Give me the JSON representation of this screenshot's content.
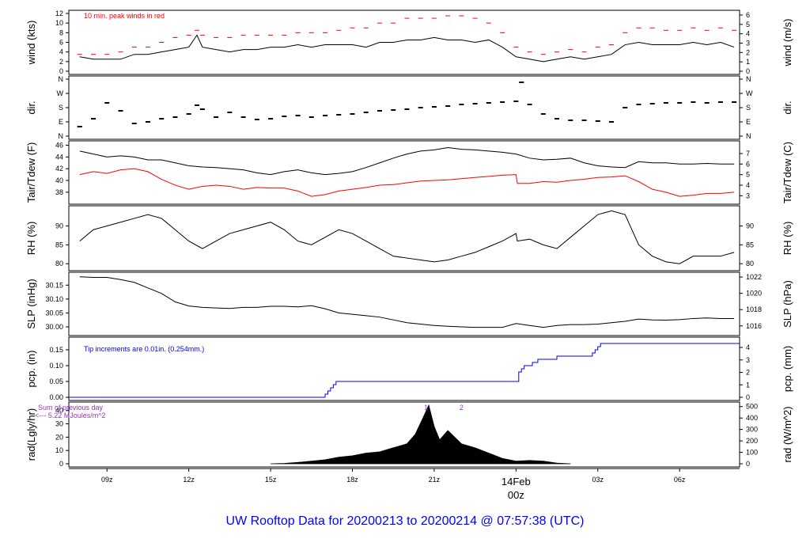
{
  "colors": {
    "primary": "#000000",
    "peak": "#ff0000",
    "dew": "#ff0000",
    "precip": "#0000ff",
    "solar": "#9933cc",
    "title": "#0000ff",
    "day": "#ff0000"
  },
  "footer_title": "UW Rooftop Data for 20200213  to  20200214 @ 07:57:38  (UTC)",
  "chart_data": [
    {
      "id": "wind",
      "type": "line",
      "ylabel_left": "wind (kts)",
      "ylabel_right": "wind (m/s)",
      "ylim": [
        0,
        12
      ],
      "yticks": [
        "0",
        "2",
        "4",
        "6",
        "8",
        "10",
        "12"
      ],
      "right_ylim": [
        0,
        6.17
      ],
      "right_yticks": [
        "0",
        "1",
        "2",
        "3",
        "4",
        "5",
        "6"
      ],
      "annotation": "10 min. peak winds in red",
      "series": [
        {
          "name": "wind speed",
          "color": "#000000",
          "x": [
            8,
            8.5,
            9,
            9.5,
            10,
            10.5,
            11,
            11.5,
            12,
            12.3,
            12.5,
            13,
            13.5,
            14,
            14.5,
            15,
            15.5,
            16,
            16.5,
            17,
            17.5,
            18,
            18.5,
            19,
            19.5,
            20,
            20.5,
            21,
            21.5,
            22,
            22.5,
            23,
            23.5,
            24,
            24.5,
            25,
            25.5,
            26,
            26.5,
            27,
            27.5,
            28,
            28.5,
            29,
            29.5,
            30,
            30.5,
            31,
            31.5,
            32
          ],
          "y": [
            3,
            2.5,
            2.5,
            2.5,
            3.5,
            3.5,
            4,
            4.5,
            5,
            7.5,
            5,
            4.5,
            4,
            4.5,
            4.5,
            5,
            5,
            5.5,
            5,
            5.5,
            5.5,
            5.5,
            5,
            6,
            6,
            6.5,
            6.5,
            7,
            6.5,
            6.5,
            6,
            6.5,
            5,
            3,
            2.5,
            2,
            2.5,
            3,
            2.5,
            3,
            3.5,
            5.5,
            6,
            5.5,
            5.5,
            5.5,
            6,
            5.5,
            6,
            5
          ]
        },
        {
          "name": "10 min peak",
          "color": "#ff0000",
          "x": [
            8,
            8.5,
            9,
            9.5,
            10,
            10.5,
            11,
            11.5,
            12,
            12.3,
            12.5,
            13,
            13.5,
            14,
            14.5,
            15,
            15.5,
            16,
            16.5,
            17,
            17.5,
            18,
            18.5,
            19,
            19.5,
            20,
            20.5,
            21,
            21.5,
            22,
            22.5,
            23,
            23.5,
            24,
            24.5,
            25,
            25.5,
            26,
            26.5,
            27,
            27.5,
            28,
            28.5,
            29,
            29.5,
            30,
            30.5,
            31,
            31.5,
            32
          ],
          "y": [
            3.5,
            3.5,
            3.5,
            4,
            5,
            5,
            6,
            7,
            7.5,
            8.5,
            7.5,
            7,
            7,
            7.5,
            7.5,
            7.5,
            7.5,
            8,
            8,
            8,
            8.5,
            9,
            9,
            10,
            10,
            11,
            11,
            11,
            11.5,
            11.5,
            11,
            10,
            8,
            5,
            4,
            3.5,
            4,
            4.5,
            4,
            5,
            5.5,
            8,
            9,
            9,
            8.5,
            8.5,
            9,
            8.5,
            9,
            8.5
          ]
        }
      ]
    },
    {
      "id": "dir",
      "type": "scatter",
      "ylabel_left": "dir.",
      "ylabel_right": "dir.",
      "ylim": [
        0,
        360
      ],
      "yticks": [
        "N",
        "E",
        "S",
        "W",
        "N"
      ],
      "right_yticks": [
        "N",
        "E",
        "S",
        "W",
        "N"
      ],
      "series": [
        {
          "name": "wind direction",
          "color": "#000000",
          "x": [
            8,
            8.5,
            9,
            9.5,
            10,
            10.5,
            11,
            11.5,
            12,
            12.3,
            12.5,
            13,
            13.5,
            14,
            14.5,
            15,
            15.5,
            16,
            16.5,
            17,
            17.5,
            18,
            18.5,
            19,
            19.5,
            20,
            20.5,
            21,
            21.5,
            22,
            22.5,
            23,
            23.5,
            24,
            24.2,
            24.5,
            25,
            25.5,
            26,
            26.5,
            27,
            27.5,
            28,
            28.5,
            29,
            29.5,
            30,
            30.5,
            31,
            31.5,
            32
          ],
          "y": [
            60,
            110,
            210,
            160,
            80,
            90,
            110,
            120,
            140,
            195,
            170,
            120,
            150,
            120,
            105,
            110,
            125,
            130,
            120,
            130,
            135,
            140,
            150,
            160,
            165,
            170,
            180,
            185,
            190,
            200,
            205,
            210,
            215,
            220,
            340,
            200,
            140,
            110,
            100,
            100,
            95,
            90,
            180,
            200,
            205,
            210,
            210,
            215,
            210,
            215,
            215
          ]
        }
      ]
    },
    {
      "id": "temp",
      "type": "line",
      "ylabel_left": "Tair/Tdew (F)",
      "ylabel_right": "Tair/Tdew (C)",
      "ylim": [
        36.5,
        46.2
      ],
      "yticks": [
        "38",
        "40",
        "42",
        "44",
        "46"
      ],
      "right_ylim": [
        2.5,
        7.9
      ],
      "right_yticks": [
        "3",
        "4",
        "5",
        "6",
        "7"
      ],
      "series": [
        {
          "name": "Tair",
          "color": "#000000",
          "x": [
            8,
            8.5,
            9,
            9.5,
            10,
            10.5,
            11,
            11.5,
            12,
            12.5,
            13,
            13.5,
            14,
            14.5,
            15,
            15.5,
            16,
            16.5,
            17,
            17.5,
            18,
            18.5,
            19,
            19.5,
            20,
            20.5,
            21,
            21.5,
            22,
            22.5,
            23,
            23.5,
            24,
            24.5,
            25,
            25.5,
            26,
            26.5,
            27,
            27.5,
            28,
            28.5,
            29,
            29.5,
            30,
            30.5,
            31,
            31.5,
            32
          ],
          "y": [
            45,
            44.5,
            44,
            44.2,
            44,
            43.5,
            43.5,
            43,
            42.5,
            42.3,
            42.2,
            42,
            41.8,
            41.3,
            41,
            41.5,
            41.8,
            41.3,
            41,
            41.2,
            41.5,
            42.2,
            43,
            43.8,
            44.5,
            45,
            45.2,
            45.6,
            45.3,
            45.2,
            45,
            44.8,
            44.5,
            43.8,
            43.5,
            43.6,
            43.8,
            43,
            42.5,
            42.3,
            42.2,
            43.2,
            43,
            43,
            42.8,
            42.8,
            42.9,
            42.8,
            42.8
          ]
        },
        {
          "name": "Tdew",
          "color": "#ff0000",
          "x": [
            8,
            8.5,
            9,
            9.5,
            10,
            10.5,
            11,
            11.5,
            12,
            12.5,
            13,
            13.5,
            14,
            14.5,
            15,
            15.5,
            16,
            16.5,
            17,
            17.5,
            18,
            18.5,
            19,
            19.5,
            20,
            20.5,
            21,
            21.5,
            22,
            22.5,
            23,
            23.5,
            24,
            24.05,
            24.5,
            25,
            25.5,
            26,
            26.5,
            27,
            27.5,
            28,
            28.5,
            29,
            29.5,
            30,
            30.5,
            31,
            31.5,
            32
          ],
          "y": [
            41,
            41.5,
            41.2,
            41.8,
            42,
            41.5,
            40.2,
            39.2,
            38.5,
            39,
            39.2,
            39,
            38.5,
            38.8,
            38.7,
            38.7,
            38.2,
            37.3,
            37.6,
            38.2,
            38.5,
            38.8,
            39.2,
            39.3,
            39.6,
            39.9,
            40,
            40.1,
            40.3,
            40.5,
            40.7,
            40.9,
            41,
            39.5,
            39.5,
            39.8,
            39.7,
            40,
            40.2,
            40.5,
            40.6,
            40.8,
            39.8,
            38.5,
            38,
            37.3,
            37.5,
            37.8,
            37.8,
            38
          ]
        }
      ]
    },
    {
      "id": "rh",
      "type": "line",
      "ylabel_left": "RH (%)",
      "ylabel_right": "RH (%)",
      "ylim": [
        79,
        94.5
      ],
      "yticks": [
        "80",
        "85",
        "90"
      ],
      "right_yticks": [
        "80",
        "85",
        "90"
      ],
      "series": [
        {
          "name": "RH",
          "color": "#000000",
          "x": [
            8,
            8.5,
            9,
            9.5,
            10,
            10.5,
            11,
            11.5,
            12,
            12.5,
            13,
            13.5,
            14,
            14.5,
            15,
            15.5,
            16,
            16.5,
            17,
            17.5,
            18,
            18.5,
            19,
            19.5,
            20,
            20.5,
            21,
            21.5,
            22,
            22.5,
            23,
            23.5,
            24,
            24.05,
            24.5,
            25,
            25.5,
            26,
            26.5,
            27,
            27.5,
            28,
            28.5,
            29,
            29.5,
            30,
            30.5,
            31,
            31.5,
            32
          ],
          "y": [
            86,
            89,
            90,
            91,
            92,
            93,
            92,
            89,
            86,
            84,
            86,
            88,
            89,
            90,
            91,
            89,
            86,
            85,
            87,
            89,
            88,
            86,
            84,
            82,
            81.5,
            81,
            80.5,
            81,
            82,
            83,
            84.5,
            86,
            88,
            86,
            86.5,
            85,
            84,
            87,
            90,
            93,
            94,
            93,
            85,
            82,
            80.5,
            80,
            82,
            82,
            82,
            83
          ]
        }
      ]
    },
    {
      "id": "slp",
      "type": "line",
      "ylabel_left": "SLP (inHg)",
      "ylabel_right": "SLP (hPa)",
      "ylim": [
        29.98,
        30.185
      ],
      "yticks": [
        "30.00",
        "30.05",
        "30.10",
        "30.15"
      ],
      "right_ylim": [
        1015.2,
        1022.2
      ],
      "right_yticks": [
        "1016",
        "1018",
        "1020",
        "1022"
      ],
      "series": [
        {
          "name": "SLP",
          "color": "#000000",
          "x": [
            8,
            8.5,
            9,
            9.5,
            10,
            10.5,
            11,
            11.5,
            12,
            12.5,
            13,
            13.5,
            14,
            14.5,
            15,
            15.5,
            16,
            16.5,
            17,
            17.5,
            18,
            18.5,
            19,
            19.5,
            20,
            20.5,
            21,
            21.5,
            22,
            22.5,
            23,
            23.5,
            24,
            24.5,
            25,
            25.5,
            26,
            26.5,
            27,
            27.5,
            28,
            28.5,
            29,
            29.5,
            30,
            30.5,
            31,
            31.5,
            32
          ],
          "y": [
            30.18,
            30.178,
            30.178,
            30.17,
            30.16,
            30.14,
            30.12,
            30.09,
            30.075,
            30.07,
            30.068,
            30.066,
            30.07,
            30.07,
            30.074,
            30.074,
            30.072,
            30.076,
            30.065,
            30.05,
            30.045,
            30.04,
            30.035,
            30.025,
            30.015,
            30.01,
            30.005,
            30.002,
            30,
            29.998,
            29.998,
            29.998,
            30.012,
            30.005,
            29.998,
            30.005,
            30.008,
            30.008,
            30.01,
            30.015,
            30.02,
            30.028,
            30.025,
            30.024,
            30.026,
            30.03,
            30.032,
            30.03,
            30.03
          ]
        }
      ]
    },
    {
      "id": "pcp",
      "type": "line",
      "ylabel_left": "pcp. (in)",
      "ylabel_right": "pcp. (mm)",
      "ylim": [
        0,
        0.18
      ],
      "yticks": [
        "0.00",
        "0.05",
        "0.10",
        "0.15"
      ],
      "right_ylim": [
        0,
        4.572
      ],
      "right_yticks": [
        "0",
        "1",
        "2",
        "3",
        "4"
      ],
      "annotation": "Tip increments are 0.01in. (0.254mm.)",
      "series": [
        {
          "name": "precip",
          "color": "#0000ff",
          "x": [
            7.6,
            16.9,
            17,
            17.1,
            17.2,
            17.3,
            17.4,
            19,
            20,
            21,
            22,
            22.9,
            23,
            23.5,
            24,
            24.1,
            24.2,
            24.3,
            24.5,
            24.6,
            24.8,
            25,
            25.5,
            26,
            26.5,
            26.8,
            26.9,
            27,
            27.1,
            27.2,
            28,
            29,
            30,
            31,
            32.2
          ],
          "y": [
            0,
            0,
            0.01,
            0.02,
            0.03,
            0.04,
            0.05,
            0.05,
            0.05,
            0.05,
            0.05,
            0.05,
            0.05,
            0.05,
            0.05,
            0.08,
            0.09,
            0.1,
            0.1,
            0.11,
            0.12,
            0.12,
            0.13,
            0.13,
            0.13,
            0.14,
            0.15,
            0.16,
            0.17,
            0.17,
            0.17,
            0.17,
            0.17,
            0.17,
            0.17
          ]
        }
      ]
    },
    {
      "id": "rad",
      "type": "area",
      "ylabel_left": "rad(Lgly/hr)",
      "ylabel_right": "rad (W/m^2)",
      "ylim": [
        0,
        44
      ],
      "yticks": [
        "0",
        "10",
        "20",
        "30",
        "40"
      ],
      "right_ylim": [
        0,
        512
      ],
      "right_yticks": [
        "0",
        "100",
        "200",
        "300",
        "400",
        "500"
      ],
      "marker_labels": [
        "1",
        "2"
      ],
      "marker_x": [
        20.7,
        22
      ],
      "annotation_lines": [
        "Sum of previous day",
        "<--- 5.22 MJoules/m^2"
      ],
      "series": [
        {
          "name": "radiation",
          "color": "#000000",
          "x": [
            15,
            15.5,
            16,
            16.5,
            17,
            17.5,
            18,
            18.5,
            19,
            19.5,
            20,
            20.3,
            20.6,
            20.8,
            21,
            21.2,
            21.5,
            22,
            22.5,
            23,
            23.5,
            24,
            24.5,
            25,
            25.5,
            26
          ],
          "y": [
            0,
            0.3,
            1,
            2,
            3,
            5,
            6,
            8,
            9,
            12,
            15,
            22,
            35,
            44,
            28,
            18,
            25,
            15,
            12,
            8,
            4,
            2,
            2.5,
            2,
            0.5,
            0
          ]
        }
      ]
    }
  ],
  "x_axis": {
    "tick_labels": [
      "09z",
      "12z",
      "15z",
      "18z",
      "21z",
      "03z",
      "06z"
    ],
    "tick_hours": [
      9,
      12,
      15,
      18,
      21,
      27,
      30
    ],
    "day_label": {
      "line1": "14Feb",
      "line2": "00z",
      "hour": 24
    }
  }
}
